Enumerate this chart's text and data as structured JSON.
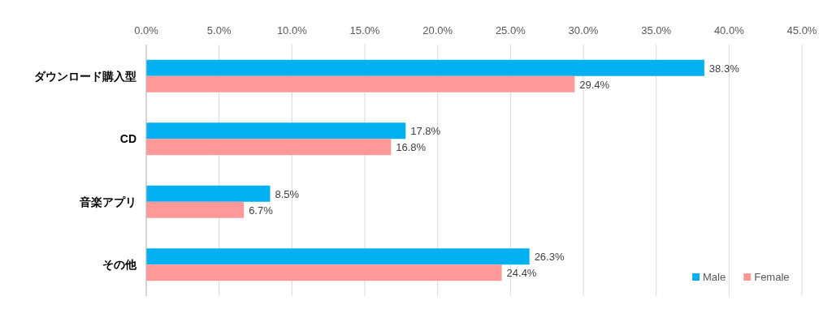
{
  "chart_data": {
    "type": "bar",
    "orientation": "horizontal",
    "categories": [
      "ダウンロード購入型",
      "CD",
      "音楽アプリ",
      "その他"
    ],
    "series": [
      {
        "name": "Male",
        "color": "#00b0f0",
        "values": [
          38.3,
          17.8,
          8.5,
          26.3
        ],
        "value_labels": [
          "38.3%",
          "17.8%",
          "8.5%",
          "26.3%"
        ]
      },
      {
        "name": "Female",
        "color": "#ff9999",
        "values": [
          29.4,
          16.8,
          6.7,
          24.4
        ],
        "value_labels": [
          "29.4%",
          "16.8%",
          "6.7%",
          "24.4%"
        ]
      }
    ],
    "xlim": [
      0,
      45
    ],
    "xticks": [
      {
        "value": 0,
        "label": "0.0%"
      },
      {
        "value": 5,
        "label": "5.0%"
      },
      {
        "value": 10,
        "label": "10.0%"
      },
      {
        "value": 15,
        "label": "15.0%"
      },
      {
        "value": 20,
        "label": "20.0%"
      },
      {
        "value": 25,
        "label": "25.0%"
      },
      {
        "value": 30,
        "label": "30.0%"
      },
      {
        "value": 35,
        "label": "35.0%"
      },
      {
        "value": 40,
        "label": "40.0%"
      },
      {
        "value": 45,
        "label": "45.0%"
      }
    ],
    "grid": "x",
    "legend": "bottom right"
  }
}
